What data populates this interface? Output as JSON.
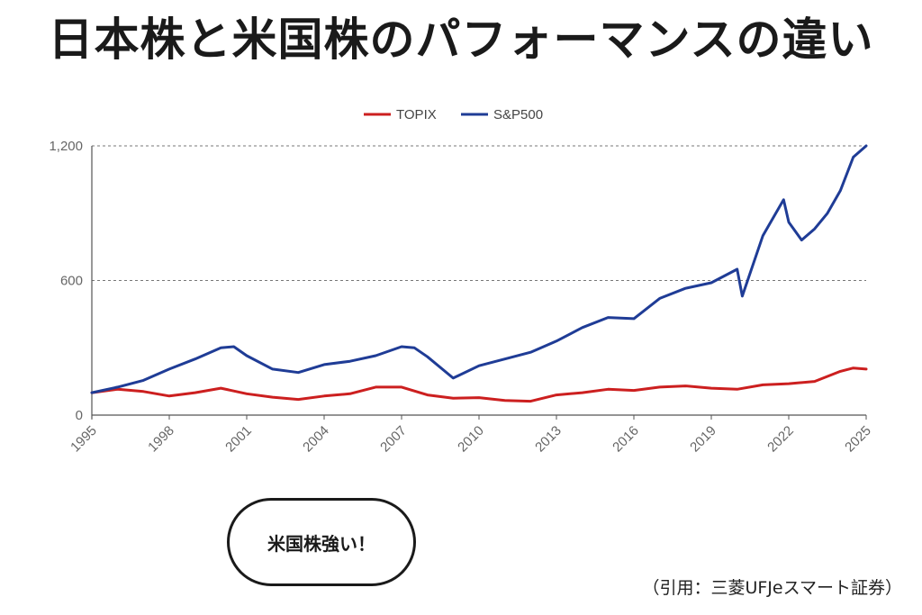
{
  "title": "日本株と米国株のパフォーマンスの違い",
  "speech_bubble": "米国株強い！",
  "credit": "（引用：三菱UFJeスマート証券）",
  "chart_data": {
    "type": "line",
    "xlim": [
      1995,
      2025
    ],
    "ylim": [
      0,
      1200
    ],
    "x_ticks": [
      "1995",
      "1998",
      "2001",
      "2004",
      "2007",
      "2010",
      "2013",
      "2016",
      "2019",
      "2022",
      "2025"
    ],
    "y_ticks": [
      {
        "value": 0,
        "label": "0"
      },
      {
        "value": 600,
        "label": "600"
      },
      {
        "value": 1200,
        "label": "1,200"
      }
    ],
    "grid": "dashed horizontal",
    "legend_position": "top-center",
    "series": [
      {
        "name": "TOPIX",
        "color": "#cc1f1f",
        "x": [
          1995,
          1996,
          1997,
          1998,
          1999,
          2000,
          2001,
          2002,
          2003,
          2004,
          2005,
          2006,
          2007,
          2008,
          2009,
          2010,
          2011,
          2012,
          2013,
          2014,
          2015,
          2016,
          2017,
          2018,
          2019,
          2020,
          2021,
          2022,
          2023,
          2024,
          2024.5,
          2025
        ],
        "values": [
          100,
          115,
          105,
          85,
          100,
          120,
          95,
          80,
          70,
          85,
          95,
          125,
          125,
          90,
          75,
          78,
          65,
          62,
          90,
          100,
          115,
          110,
          125,
          130,
          120,
          115,
          135,
          140,
          150,
          195,
          210,
          205
        ]
      },
      {
        "name": "S&P500",
        "color": "#1f3c96",
        "x": [
          1995,
          1996,
          1997,
          1998,
          1999,
          2000,
          2000.5,
          2001,
          2002,
          2003,
          2004,
          2005,
          2006,
          2007,
          2007.5,
          2008,
          2009,
          2010,
          2011,
          2012,
          2013,
          2014,
          2015,
          2016,
          2017,
          2018,
          2019,
          2020,
          2020.2,
          2021,
          2021.8,
          2022,
          2022.5,
          2023,
          2023.5,
          2024,
          2024.5,
          2025
        ],
        "values": [
          100,
          125,
          155,
          205,
          250,
          300,
          305,
          265,
          205,
          190,
          225,
          240,
          265,
          305,
          300,
          260,
          165,
          220,
          250,
          280,
          330,
          390,
          435,
          430,
          520,
          565,
          590,
          650,
          530,
          800,
          960,
          860,
          780,
          830,
          900,
          1000,
          1150,
          1200
        ]
      }
    ]
  }
}
